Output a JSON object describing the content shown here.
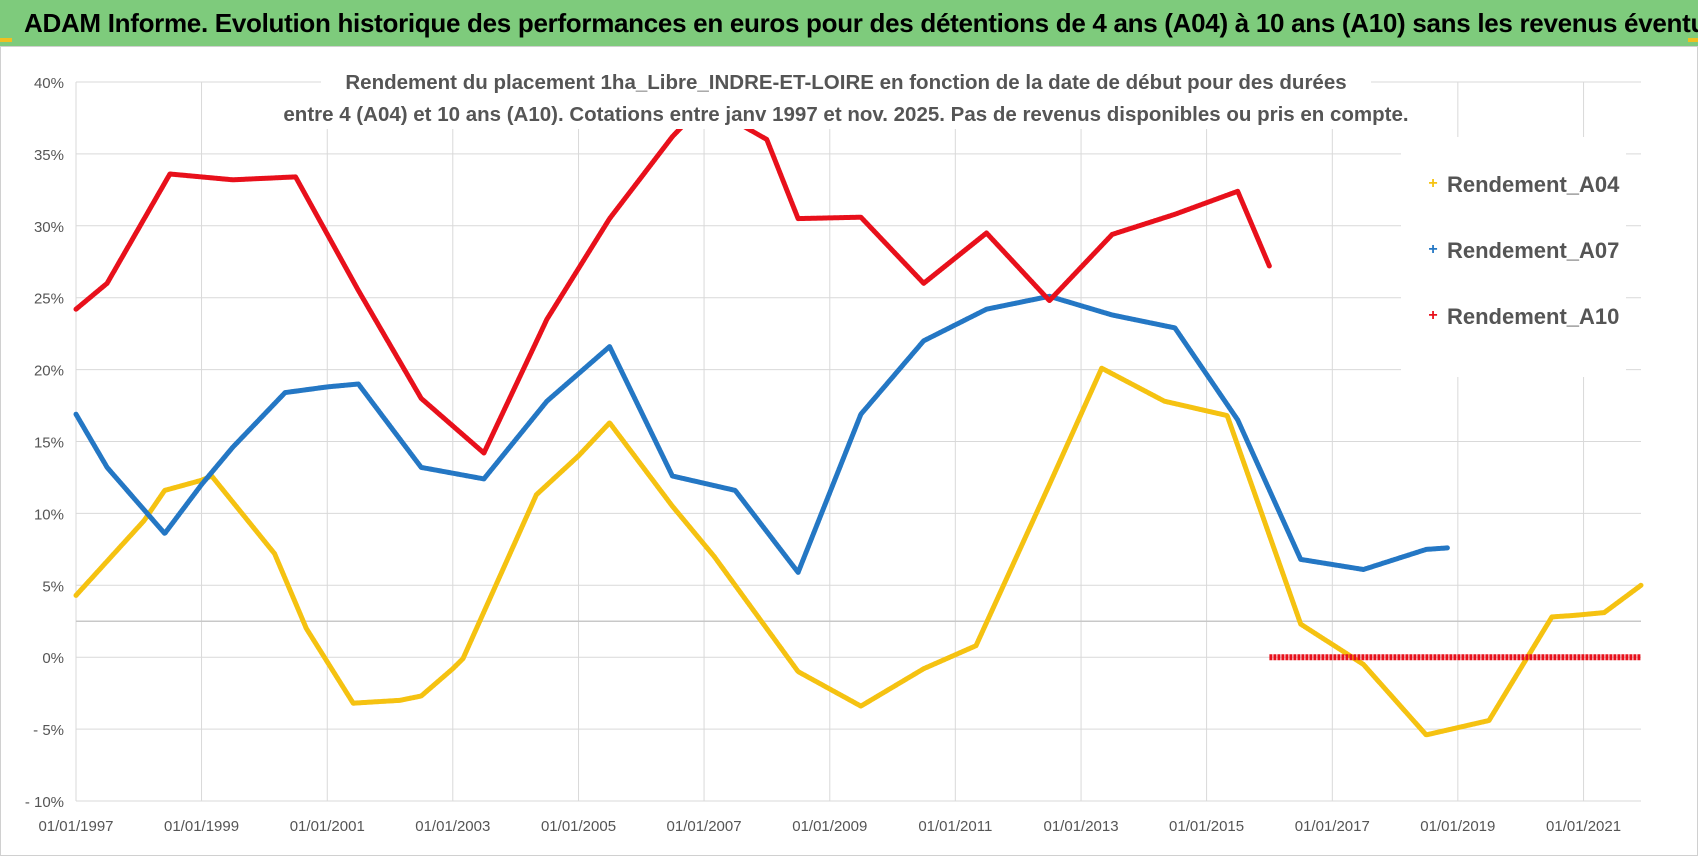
{
  "banner": {
    "title": "ADAM Informe. Evolution historique des performances en euros pour des détentions de 4 ans (A04) à 10 ans (A10) sans les revenus éventuels"
  },
  "colors": {
    "banner_bg": "#7ecb7c",
    "corner_accent": "#f0c020",
    "grid": "#d9d9d9"
  },
  "chart_data": {
    "type": "line",
    "title_lines": [
      "Rendement du placement 1ha_Libre_INDRE-ET-LOIRE en fonction de la date de début pour des durées",
      "entre 4 (A04) et 10 ans (A10).  Cotations entre janv 1997 et nov. 2025. Pas de revenus disponibles ou pris en compte."
    ],
    "xlabel": "",
    "ylabel": "",
    "y_unit": "%",
    "ylim": [
      -10,
      40
    ],
    "y_ticks": [
      -10,
      -5,
      0,
      5,
      10,
      15,
      20,
      25,
      30,
      35,
      40
    ],
    "y_tick_labels": [
      "- 10%",
      "- 5%",
      "0%",
      "5%",
      "10%",
      "15%",
      "20%",
      "25%",
      "30%",
      "35%",
      "40%"
    ],
    "xlim": [
      "1997-01-01",
      "2021-12-01"
    ],
    "x_ticks": [
      "1997-01-01",
      "1999-01-01",
      "2001-01-01",
      "2003-01-01",
      "2005-01-01",
      "2007-01-01",
      "2009-01-01",
      "2011-01-01",
      "2013-01-01",
      "2015-01-01",
      "2017-01-01",
      "2019-01-01",
      "2021-01-01"
    ],
    "x_tick_labels": [
      "01/01/1997",
      "01/01/1999",
      "01/01/2001",
      "01/01/2003",
      "01/01/2005",
      "01/01/2007",
      "01/01/2009",
      "01/01/2011",
      "01/01/2013",
      "01/01/2015",
      "01/01/2017",
      "01/01/2019",
      "01/01/2021"
    ],
    "grid": true,
    "legend_position": "right",
    "series": [
      {
        "name": "Rendement_A04",
        "color": "#f5c211",
        "points": [
          [
            "1997-01-01",
            4.3
          ],
          [
            "1998-02-01",
            9.5
          ],
          [
            "1998-06-01",
            11.6
          ],
          [
            "1999-01-01",
            12.3
          ],
          [
            "1999-03-01",
            12.6
          ],
          [
            "2000-03-01",
            7.2
          ],
          [
            "2000-09-01",
            2.0
          ],
          [
            "2001-06-01",
            -3.2
          ],
          [
            "2002-03-01",
            -3.0
          ],
          [
            "2002-07-01",
            -2.7
          ],
          [
            "2003-01-01",
            -0.8
          ],
          [
            "2003-03-01",
            -0.1
          ],
          [
            "2004-05-01",
            11.3
          ],
          [
            "2005-01-01",
            14.0
          ],
          [
            "2005-07-01",
            16.3
          ],
          [
            "2006-07-01",
            10.5
          ],
          [
            "2007-03-01",
            7.0
          ],
          [
            "2008-07-01",
            -1.0
          ],
          [
            "2009-07-01",
            -3.4
          ],
          [
            "2010-07-01",
            -0.8
          ],
          [
            "2011-05-01",
            0.8
          ],
          [
            "2012-07-01",
            12.0
          ],
          [
            "2013-05-01",
            20.1
          ],
          [
            "2014-05-01",
            17.8
          ],
          [
            "2015-05-01",
            16.8
          ],
          [
            "2016-07-01",
            2.3
          ],
          [
            "2017-07-01",
            -0.5
          ],
          [
            "2018-07-01",
            -5.4
          ],
          [
            "2019-07-01",
            -4.4
          ],
          [
            "2020-07-01",
            2.8
          ],
          [
            "2020-11-01",
            2.9
          ],
          [
            "2021-05-01",
            3.1
          ],
          [
            "2021-12-01",
            5.0
          ]
        ]
      },
      {
        "name": "Rendement_A07",
        "color": "#2477c4",
        "points": [
          [
            "1997-01-01",
            16.9
          ],
          [
            "1997-07-01",
            13.2
          ],
          [
            "1998-06-01",
            8.6
          ],
          [
            "1999-01-01",
            12.0
          ],
          [
            "1999-07-01",
            14.6
          ],
          [
            "2000-05-01",
            18.4
          ],
          [
            "2001-01-01",
            18.8
          ],
          [
            "2001-07-01",
            19.0
          ],
          [
            "2002-07-01",
            13.2
          ],
          [
            "2003-07-01",
            12.4
          ],
          [
            "2004-07-01",
            17.8
          ],
          [
            "2005-07-01",
            21.6
          ],
          [
            "2006-07-01",
            12.6
          ],
          [
            "2007-07-01",
            11.6
          ],
          [
            "2008-07-01",
            5.9
          ],
          [
            "2009-07-01",
            16.9
          ],
          [
            "2010-07-01",
            22.0
          ],
          [
            "2011-07-01",
            24.2
          ],
          [
            "2012-07-01",
            25.1
          ],
          [
            "2013-07-01",
            23.8
          ],
          [
            "2014-07-01",
            22.9
          ],
          [
            "2015-07-01",
            16.5
          ],
          [
            "2016-07-01",
            6.8
          ],
          [
            "2017-07-01",
            6.1
          ],
          [
            "2018-07-01",
            7.5
          ],
          [
            "2018-11-01",
            7.6
          ]
        ]
      },
      {
        "name": "Rendement_A10",
        "color": "#e8101b",
        "points": [
          [
            "1997-01-01",
            24.2
          ],
          [
            "1997-07-01",
            26.0
          ],
          [
            "1998-07-01",
            33.6
          ],
          [
            "1999-07-01",
            33.2
          ],
          [
            "2000-07-01",
            33.4
          ],
          [
            "2001-07-01",
            25.5
          ],
          [
            "2002-07-01",
            18.0
          ],
          [
            "2003-07-01",
            14.2
          ],
          [
            "2004-07-01",
            23.5
          ],
          [
            "2005-07-01",
            30.5
          ],
          [
            "2006-07-01",
            36.2
          ],
          [
            "2007-01-01",
            38.5
          ],
          [
            "2008-01-01",
            36.0
          ],
          [
            "2008-07-01",
            30.5
          ],
          [
            "2009-07-01",
            30.6
          ],
          [
            "2010-07-01",
            26.0
          ],
          [
            "2011-07-01",
            29.5
          ],
          [
            "2012-07-01",
            24.8
          ],
          [
            "2013-07-01",
            29.4
          ],
          [
            "2014-07-01",
            30.8
          ],
          [
            "2015-07-01",
            32.4
          ],
          [
            "2016-01-01",
            27.2
          ]
        ],
        "extra_segments": [
          [
            [
              "2016-01-01",
              0
            ],
            [
              "2021-12-01",
              0
            ]
          ]
        ]
      }
    ]
  }
}
